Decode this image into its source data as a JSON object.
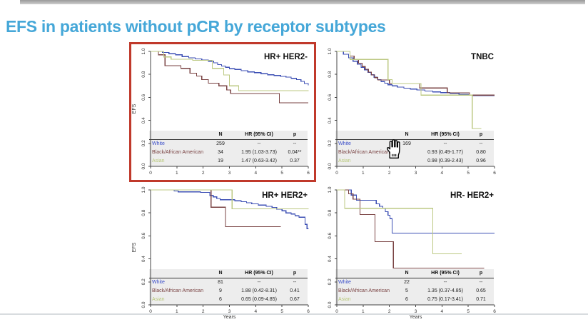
{
  "slide": {
    "title": "EFS in patients without pCR by receptor subtypes",
    "title_color": "#45a7d8",
    "highlight_box_color": "#c0392b",
    "background_color": "#ffffff"
  },
  "colors": {
    "white_series": "#3c4fb4",
    "black_aa_series": "#7a4343",
    "asian_series": "#bcc983",
    "axis": "#444444",
    "table_bg": "#ededed",
    "panel_title": "#111111"
  },
  "cursor": {
    "icon": "hand-pointer-cursor"
  },
  "chart_data": [
    {
      "type": "line",
      "title": "HR+ HER2-",
      "ylabel": "EFS",
      "xlabel": "",
      "xlim": [
        0,
        6
      ],
      "ylim": [
        0.0,
        1.0
      ],
      "x_ticks": [
        "0",
        "1",
        "2",
        "3",
        "4",
        "5",
        "6"
      ],
      "y_ticks": [
        "0.0",
        "0.2",
        "0.4",
        "0.6",
        "0.8",
        "1.0"
      ],
      "highlighted": true,
      "series": [
        {
          "name": "White",
          "color": "#3c4fb4",
          "steps": [
            [
              0,
              1
            ],
            [
              0.45,
              0.99
            ],
            [
              0.7,
              0.98
            ],
            [
              0.95,
              0.97
            ],
            [
              1.2,
              0.955
            ],
            [
              1.45,
              0.945
            ],
            [
              1.7,
              0.935
            ],
            [
              1.95,
              0.925
            ],
            [
              2.2,
              0.915
            ],
            [
              2.4,
              0.9
            ],
            [
              2.55,
              0.885
            ],
            [
              2.7,
              0.872
            ],
            [
              2.85,
              0.862
            ],
            [
              3,
              0.85
            ],
            [
              3.2,
              0.843
            ],
            [
              3.45,
              0.833
            ],
            [
              3.7,
              0.822
            ],
            [
              3.95,
              0.815
            ],
            [
              4.2,
              0.806
            ],
            [
              4.45,
              0.797
            ],
            [
              4.7,
              0.79
            ],
            [
              4.95,
              0.783
            ],
            [
              5.15,
              0.776
            ],
            [
              5.35,
              0.766
            ],
            [
              5.55,
              0.754
            ],
            [
              5.72,
              0.74
            ],
            [
              5.85,
              0.72
            ],
            [
              6,
              0.705
            ]
          ]
        },
        {
          "name": "Black/African American",
          "color": "#7a4343",
          "steps": [
            [
              0,
              1
            ],
            [
              0.3,
              0.97
            ],
            [
              0.55,
              0.875
            ],
            [
              1.15,
              0.853
            ],
            [
              1.5,
              0.81
            ],
            [
              1.75,
              0.785
            ],
            [
              1.95,
              0.755
            ],
            [
              2.2,
              0.723
            ],
            [
              2.6,
              0.7
            ],
            [
              2.9,
              0.665
            ],
            [
              3.05,
              0.633
            ],
            [
              4.9,
              0.553
            ],
            [
              6,
              0.553
            ]
          ]
        },
        {
          "name": "Asian",
          "color": "#bcc983",
          "steps": [
            [
              0,
              1
            ],
            [
              0.5,
              0.952
            ],
            [
              0.78,
              0.932
            ],
            [
              1.6,
              0.922
            ],
            [
              2.35,
              0.853
            ],
            [
              2.78,
              0.795
            ],
            [
              3,
              0.7
            ],
            [
              3.35,
              0.658
            ],
            [
              6,
              0.655
            ]
          ]
        }
      ],
      "table": {
        "headers": [
          "",
          "N",
          "HR (95% CI)",
          "p"
        ],
        "rows": [
          {
            "label": "White",
            "color": "#3b4ec9",
            "n": "259",
            "hr": "--",
            "p": "--"
          },
          {
            "label": "Black/African American",
            "color": "#7a4343",
            "n": "34",
            "hr": "1.95 (1.03-3.73)",
            "p": "0.04**"
          },
          {
            "label": "Asian",
            "color": "#b8c878",
            "n": "19",
            "hr": "1.47 (0.63-3.42)",
            "p": "0.37"
          }
        ]
      }
    },
    {
      "type": "line",
      "title": "TNBC",
      "ylabel": "",
      "xlabel": "",
      "xlim": [
        0,
        6
      ],
      "ylim": [
        0.0,
        1.0
      ],
      "x_ticks": [
        "0",
        "1",
        "2",
        "3",
        "4",
        "5",
        "6"
      ],
      "y_ticks": [
        "0.0",
        "0.2",
        "0.4",
        "0.6",
        "0.8",
        "1.0"
      ],
      "highlighted": false,
      "series": [
        {
          "name": "White",
          "color": "#3c4fb4",
          "steps": [
            [
              0,
              1
            ],
            [
              0.25,
              0.975
            ],
            [
              0.45,
              0.945
            ],
            [
              0.62,
              0.915
            ],
            [
              0.78,
              0.888
            ],
            [
              0.92,
              0.862
            ],
            [
              1.05,
              0.84
            ],
            [
              1.18,
              0.818
            ],
            [
              1.3,
              0.796
            ],
            [
              1.42,
              0.775
            ],
            [
              1.55,
              0.755
            ],
            [
              1.68,
              0.738
            ],
            [
              1.82,
              0.723
            ],
            [
              1.95,
              0.71
            ],
            [
              2.1,
              0.7
            ],
            [
              2.3,
              0.69
            ],
            [
              2.55,
              0.681
            ],
            [
              2.8,
              0.672
            ],
            [
              3.05,
              0.664
            ],
            [
              3.35,
              0.655
            ],
            [
              3.65,
              0.648
            ],
            [
              3.95,
              0.641
            ],
            [
              4.3,
              0.633
            ],
            [
              4.65,
              0.626
            ],
            [
              5,
              0.62
            ],
            [
              5.15,
              0.614
            ],
            [
              6,
              0.614
            ]
          ]
        },
        {
          "name": "Black/African American",
          "color": "#7a4343",
          "steps": [
            [
              0,
              1
            ],
            [
              0.5,
              0.96
            ],
            [
              0.66,
              0.928
            ],
            [
              0.82,
              0.898
            ],
            [
              0.96,
              0.868
            ],
            [
              1.08,
              0.845
            ],
            [
              1.2,
              0.82
            ],
            [
              1.32,
              0.795
            ],
            [
              1.44,
              0.772
            ],
            [
              1.56,
              0.752
            ],
            [
              2,
              0.72
            ],
            [
              3.15,
              0.682
            ],
            [
              4.2,
              0.64
            ],
            [
              5.05,
              0.62
            ],
            [
              6,
              0.62
            ]
          ]
        },
        {
          "name": "Asian",
          "color": "#bcc983",
          "steps": [
            [
              0,
              1
            ],
            [
              0.5,
              0.93
            ],
            [
              1.95,
              0.755
            ],
            [
              2.1,
              0.72
            ],
            [
              3.2,
              0.62
            ],
            [
              5.15,
              0.33
            ],
            [
              5.5,
              0.33
            ]
          ]
        }
      ],
      "table": {
        "headers": [
          "",
          "N",
          "HR (95% CI)",
          "p"
        ],
        "rows": [
          {
            "label": "White",
            "color": "#3b4ec9",
            "n": "169",
            "hr": "--",
            "p": "--"
          },
          {
            "label": "Black/African American",
            "color": "#7a4343",
            "n": "",
            "hr": "0.93 (0.49-1.77)",
            "p": "0.80"
          },
          {
            "label": "Asian",
            "color": "#b8c878",
            "n": "",
            "hr": "0.98 (0.39-2.43)",
            "p": "0.96"
          }
        ]
      }
    },
    {
      "type": "line",
      "title": "HR+ HER2+",
      "ylabel": "EFS",
      "xlabel": "Years",
      "xlim": [
        0,
        6
      ],
      "ylim": [
        0.0,
        1.0
      ],
      "x_ticks": [
        "0",
        "1",
        "2",
        "3",
        "4",
        "5",
        "6"
      ],
      "y_ticks": [
        "0.0",
        "0.2",
        "0.4",
        "0.6",
        "0.8",
        "1.0"
      ],
      "highlighted": false,
      "series": [
        {
          "name": "White",
          "color": "#3c4fb4",
          "steps": [
            [
              0,
              1
            ],
            [
              0.9,
              0.99
            ],
            [
              1.05,
              0.983
            ],
            [
              1.9,
              0.978
            ],
            [
              2.25,
              0.952
            ],
            [
              2.38,
              0.94
            ],
            [
              2.52,
              0.925
            ],
            [
              2.65,
              0.915
            ],
            [
              3.2,
              0.905
            ],
            [
              3.45,
              0.898
            ],
            [
              3.65,
              0.888
            ],
            [
              3.85,
              0.878
            ],
            [
              4.1,
              0.868
            ],
            [
              4.4,
              0.858
            ],
            [
              4.62,
              0.848
            ],
            [
              4.8,
              0.832
            ],
            [
              5,
              0.818
            ],
            [
              5.15,
              0.8
            ],
            [
              5.35,
              0.79
            ],
            [
              5.5,
              0.775
            ],
            [
              5.65,
              0.762
            ],
            [
              5.88,
              0.7
            ],
            [
              5.95,
              0.663
            ],
            [
              6,
              0.66
            ]
          ]
        },
        {
          "name": "Black/African American",
          "color": "#7a4343",
          "steps": [
            [
              0,
              1
            ],
            [
              2.3,
              0.85
            ],
            [
              2.85,
              0.68
            ],
            [
              4.95,
              0.68
            ]
          ]
        },
        {
          "name": "Asian",
          "color": "#bcc983",
          "steps": [
            [
              0,
              1
            ],
            [
              3.1,
              0.835
            ],
            [
              6,
              0.832
            ]
          ]
        }
      ],
      "table": {
        "headers": [
          "",
          "N",
          "HR (95% CI)",
          "p"
        ],
        "rows": [
          {
            "label": "White",
            "color": "#3b4ec9",
            "n": "81",
            "hr": "--",
            "p": "--"
          },
          {
            "label": "Black/African American",
            "color": "#7a4343",
            "n": "9",
            "hr": "1.88 (0.42-8.31)",
            "p": "0.41"
          },
          {
            "label": "Asian",
            "color": "#b8c878",
            "n": "6",
            "hr": "0.65 (0.09-4.85)",
            "p": "0.67"
          }
        ]
      }
    },
    {
      "type": "line",
      "title": "HR- HER2+",
      "ylabel": "",
      "xlabel": "Years",
      "xlim": [
        0,
        6
      ],
      "ylim": [
        0.0,
        1.0
      ],
      "x_ticks": [
        "0",
        "1",
        "2",
        "3",
        "4",
        "5",
        "6"
      ],
      "y_ticks": [
        "0.0",
        "0.2",
        "0.4",
        "0.6",
        "0.8",
        "1.0"
      ],
      "highlighted": false,
      "series": [
        {
          "name": "White",
          "color": "#3c4fb4",
          "steps": [
            [
              0,
              1
            ],
            [
              0.55,
              0.955
            ],
            [
              0.75,
              0.91
            ],
            [
              1.5,
              0.878
            ],
            [
              1.62,
              0.858
            ],
            [
              1.75,
              0.838
            ],
            [
              1.85,
              0.81
            ],
            [
              1.95,
              0.78
            ],
            [
              2.02,
              0.75
            ],
            [
              2.1,
              0.625
            ],
            [
              6,
              0.625
            ]
          ]
        },
        {
          "name": "Black/African American",
          "color": "#7a4343",
          "steps": [
            [
              0,
              1
            ],
            [
              0.45,
              0.965
            ],
            [
              0.62,
              0.92
            ],
            [
              0.88,
              0.785
            ],
            [
              1.45,
              0.55
            ],
            [
              2.15,
              0.32
            ],
            [
              5.6,
              0.32
            ]
          ]
        },
        {
          "name": "Asian",
          "color": "#bcc983",
          "steps": [
            [
              0,
              1
            ],
            [
              0.3,
              0.84
            ],
            [
              3.65,
              0.445
            ],
            [
              4.75,
              0.445
            ]
          ]
        }
      ],
      "table": {
        "headers": [
          "",
          "N",
          "HR (95% CI)",
          "p"
        ],
        "rows": [
          {
            "label": "White",
            "color": "#3b4ec9",
            "n": "22",
            "hr": "--",
            "p": "--"
          },
          {
            "label": "Black/African American",
            "color": "#7a4343",
            "n": "5",
            "hr": "1.35 (0.37-4.85)",
            "p": "0.65"
          },
          {
            "label": "Asian",
            "color": "#b8c878",
            "n": "6",
            "hr": "0.75 (0.17-3.41)",
            "p": "0.71"
          }
        ]
      }
    }
  ]
}
